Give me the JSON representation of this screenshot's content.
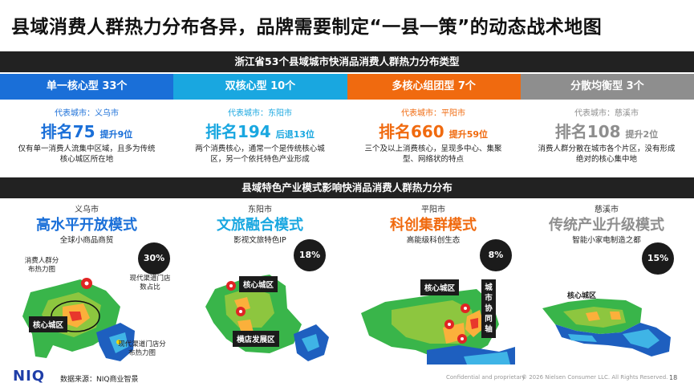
{
  "page_title": "县域消费人群热力分布各异，品牌需要制定“一县一策”的动态战术地图",
  "band1": "浙江省53个县域城市快消品消费人群热力分布类型",
  "band2": "县域特色产业模式影响快消品消费人群热力分布",
  "colors": {
    "blue": "#1a6fd8",
    "cyan": "#19a7e0",
    "orange": "#f06a0f",
    "gray": "#8e8e8e",
    "dark": "#222222"
  },
  "types": [
    {
      "label": "单一核心型 33个",
      "rep": "代表城市：义乌市",
      "rank": "排名75",
      "change": "提升9位",
      "desc": "仅有单一消费人流集中区域，且多为传统核心城区所在地"
    },
    {
      "label": "双核心型 10个",
      "rep": "代表城市：东阳市",
      "rank": "排名194",
      "change": "后退13位",
      "desc": "两个消费核心，通常一个是传统核心城区，另一个依托特色产业形成"
    },
    {
      "label": "多核心组团型 7个",
      "rep": "代表城市：平阳市",
      "rank": "排名660",
      "change": "提升59位",
      "desc": "三个及以上消费核心，呈现多中心、集聚型、网络状的特点"
    },
    {
      "label": "分散均衡型 3个",
      "rep": "代表城市：慈溪市",
      "rank": "排名108",
      "change": "提升2位",
      "desc": "消费人群分散在城市各个片区，没有形成绝对的核心集中地"
    }
  ],
  "cities": [
    {
      "name": "义乌市",
      "mode": "高水平开放模式",
      "sub": "全球小商品商贸",
      "pct": "30%",
      "labels": [
        "核心城区"
      ],
      "notes": [
        "消费人群分布热力图",
        "现代渠道门店数占比",
        "现代渠道门店分布热力图"
      ]
    },
    {
      "name": "东阳市",
      "mode": "文旅融合模式",
      "sub": "影视文旅特色IP",
      "pct": "18%",
      "labels": [
        "核心城区",
        "横店发展区"
      ]
    },
    {
      "name": "平阳市",
      "mode": "科创集群模式",
      "sub": "高能级科创生态",
      "pct": "8%",
      "labels": [
        "核心城区",
        "城市协同轴"
      ]
    },
    {
      "name": "慈溪市",
      "mode": "传统产业升级模式",
      "sub": "智能小家电制造之都",
      "pct": "15%",
      "labels": [
        "核心城区"
      ]
    }
  ],
  "footer": {
    "logo": "NIQ",
    "source": "数据来源：NIQ商业智景",
    "confidential": "Confidential and proprietary",
    "copyright": "© 2026 Nielsen Consumer LLC. All Rights Reserved.",
    "page": "18"
  }
}
